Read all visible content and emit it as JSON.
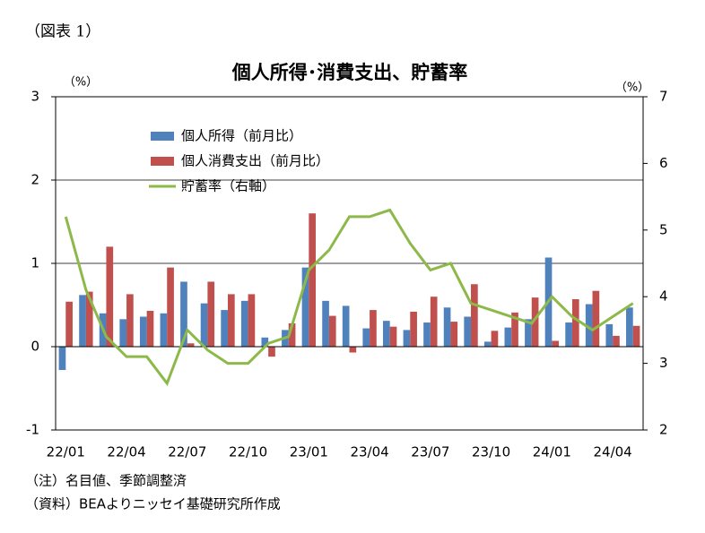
{
  "figure_label": "（図表 1）",
  "notes": [
    "（注）名目値、季節調整済",
    "（資料）BEAよりニッセイ基礎研究所作成"
  ],
  "chart_data": {
    "type": "bar_line",
    "title": "個人所得･消費支出、貯蓄率",
    "y_unit": "（%）",
    "y2_unit": "（%）",
    "categories": [
      "22/01",
      null,
      null,
      "22/04",
      null,
      null,
      "22/07",
      null,
      null,
      "22/10",
      null,
      null,
      "23/01",
      null,
      null,
      "23/04",
      null,
      null,
      "23/07",
      null,
      null,
      "23/10",
      null,
      null,
      "24/01",
      null,
      null,
      "24/04",
      null
    ],
    "series": [
      {
        "name": "個人所得（前月比）",
        "type": "bar",
        "color": "#4f81bd",
        "values": [
          -0.28,
          0.62,
          0.4,
          0.33,
          0.36,
          0.4,
          0.78,
          0.52,
          0.44,
          0.55,
          0.11,
          0.2,
          0.95,
          0.55,
          0.49,
          0.22,
          0.31,
          0.2,
          0.29,
          0.47,
          0.36,
          0.06,
          0.23,
          0.33,
          1.07,
          0.29,
          0.51,
          0.27,
          0.47
        ]
      },
      {
        "name": "個人消費支出（前月比）",
        "type": "bar",
        "color": "#c0504d",
        "values": [
          0.54,
          0.66,
          1.2,
          0.63,
          0.43,
          0.95,
          0.04,
          0.78,
          0.63,
          0.63,
          -0.12,
          0.28,
          1.6,
          0.37,
          -0.07,
          0.44,
          0.24,
          0.42,
          0.6,
          0.3,
          0.75,
          0.19,
          0.41,
          0.59,
          0.07,
          0.57,
          0.67,
          0.13,
          0.25
        ]
      },
      {
        "name": "貯蓄率（右軸）",
        "type": "line",
        "axis": "y2",
        "color": "#8db94a",
        "values": [
          5.2,
          4.1,
          3.4,
          3.1,
          3.1,
          2.7,
          3.5,
          3.2,
          3.0,
          3.0,
          3.3,
          3.4,
          4.4,
          4.7,
          5.2,
          5.2,
          5.3,
          4.8,
          4.4,
          4.5,
          3.9,
          3.8,
          3.7,
          3.6,
          4.0,
          3.7,
          3.5,
          3.7,
          3.9
        ]
      }
    ],
    "ylim": [
      -1,
      3
    ],
    "yticks": [
      -1,
      0,
      1,
      2,
      3
    ],
    "y2lim": [
      2,
      7
    ],
    "y2ticks": [
      2,
      3,
      4,
      5,
      6,
      7
    ],
    "grid": true,
    "legend": "upper left"
  }
}
